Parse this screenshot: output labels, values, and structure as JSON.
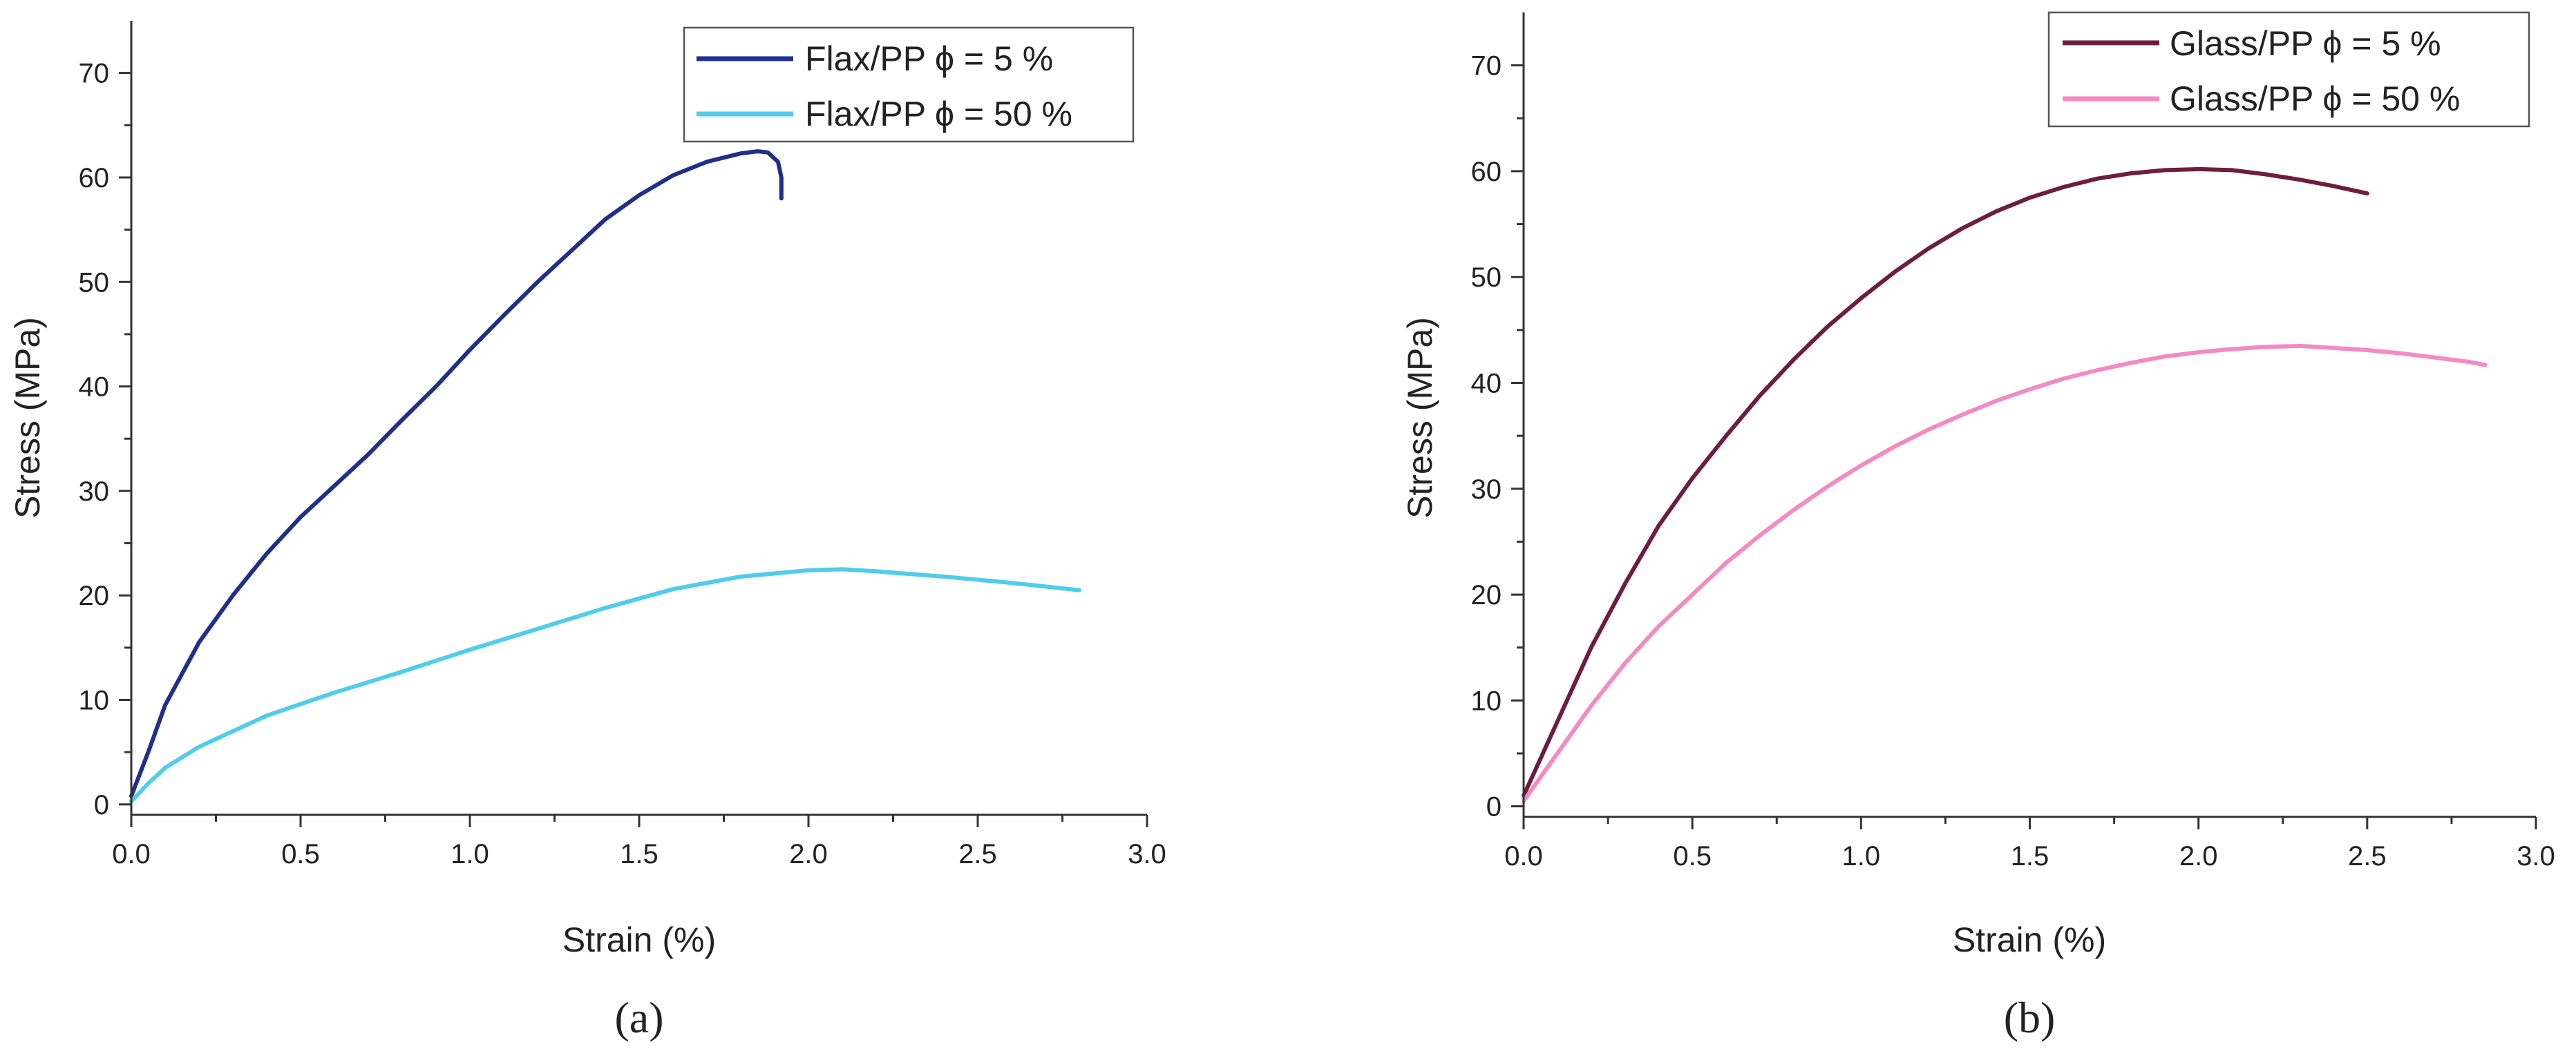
{
  "chart_data": [
    {
      "type": "line",
      "panel_label": "(a)",
      "xlabel": "Strain (%)",
      "ylabel": "Stress (MPa)",
      "xlim": [
        0,
        3
      ],
      "ylim": [
        -1,
        75
      ],
      "x_ticks": [
        "0.0",
        "0.5",
        "1.0",
        "1.5",
        "2.0",
        "2.5",
        "3.0"
      ],
      "y_ticks": [
        "0",
        "10",
        "20",
        "30",
        "40",
        "50",
        "60",
        "70"
      ],
      "grid": false,
      "legend_position": "top-right",
      "series": [
        {
          "name": "Flax/PP ϕ = 5 %",
          "color": "#1f2f8a",
          "points": [
            [
              0,
              0.8
            ],
            [
              0.05,
              5
            ],
            [
              0.1,
              9.5
            ],
            [
              0.2,
              15.5
            ],
            [
              0.3,
              20
            ],
            [
              0.4,
              24
            ],
            [
              0.5,
              27.5
            ],
            [
              0.6,
              30.5
            ],
            [
              0.7,
              33.5
            ],
            [
              0.8,
              36.8
            ],
            [
              0.9,
              40
            ],
            [
              1.0,
              43.5
            ],
            [
              1.1,
              46.8
            ],
            [
              1.2,
              50
            ],
            [
              1.3,
              53
            ],
            [
              1.4,
              56
            ],
            [
              1.5,
              58.3
            ],
            [
              1.6,
              60.2
            ],
            [
              1.7,
              61.5
            ],
            [
              1.8,
              62.3
            ],
            [
              1.85,
              62.5
            ],
            [
              1.88,
              62.4
            ],
            [
              1.91,
              61.5
            ],
            [
              1.92,
              60
            ],
            [
              1.92,
              58
            ]
          ]
        },
        {
          "name": "Flax/PP ϕ = 50 %",
          "color": "#4fcdea",
          "points": [
            [
              0,
              0.3
            ],
            [
              0.05,
              2
            ],
            [
              0.1,
              3.5
            ],
            [
              0.2,
              5.5
            ],
            [
              0.3,
              7
            ],
            [
              0.4,
              8.5
            ],
            [
              0.5,
              9.6
            ],
            [
              0.6,
              10.7
            ],
            [
              0.8,
              12.7
            ],
            [
              1.0,
              14.8
            ],
            [
              1.2,
              16.8
            ],
            [
              1.4,
              18.8
            ],
            [
              1.6,
              20.6
            ],
            [
              1.8,
              21.8
            ],
            [
              2.0,
              22.4
            ],
            [
              2.1,
              22.5
            ],
            [
              2.2,
              22.3
            ],
            [
              2.4,
              21.8
            ],
            [
              2.6,
              21.2
            ],
            [
              2.8,
              20.5
            ]
          ]
        }
      ]
    },
    {
      "type": "line",
      "panel_label": "(b)",
      "xlabel": "Strain (%)",
      "ylabel": "Stress (MPa)",
      "xlim": [
        0,
        3
      ],
      "ylim": [
        -1,
        75
      ],
      "x_ticks": [
        "0.0",
        "0.5",
        "1.0",
        "1.5",
        "2.0",
        "2.5",
        "3.0"
      ],
      "y_ticks": [
        "0",
        "10",
        "20",
        "30",
        "40",
        "50",
        "60",
        "70"
      ],
      "grid": false,
      "legend_position": "top-right",
      "series": [
        {
          "name": "Glass/PP ϕ = 5 %",
          "color": "#6e1d3f",
          "points": [
            [
              0,
              1
            ],
            [
              0.1,
              8
            ],
            [
              0.2,
              15
            ],
            [
              0.3,
              21
            ],
            [
              0.4,
              26.5
            ],
            [
              0.5,
              31
            ],
            [
              0.6,
              35
            ],
            [
              0.7,
              38.8
            ],
            [
              0.8,
              42.2
            ],
            [
              0.9,
              45.3
            ],
            [
              1.0,
              48
            ],
            [
              1.1,
              50.5
            ],
            [
              1.2,
              52.7
            ],
            [
              1.3,
              54.6
            ],
            [
              1.4,
              56.2
            ],
            [
              1.5,
              57.5
            ],
            [
              1.6,
              58.5
            ],
            [
              1.7,
              59.3
            ],
            [
              1.8,
              59.8
            ],
            [
              1.9,
              60.1
            ],
            [
              2.0,
              60.2
            ],
            [
              2.1,
              60.1
            ],
            [
              2.2,
              59.7
            ],
            [
              2.3,
              59.2
            ],
            [
              2.4,
              58.6
            ],
            [
              2.5,
              57.9
            ]
          ]
        },
        {
          "name": "Glass/PP ϕ = 50 %",
          "color": "#f589c4",
          "points": [
            [
              0,
              0.5
            ],
            [
              0.1,
              5
            ],
            [
              0.2,
              9.5
            ],
            [
              0.3,
              13.5
            ],
            [
              0.4,
              17
            ],
            [
              0.5,
              20
            ],
            [
              0.6,
              23
            ],
            [
              0.7,
              25.6
            ],
            [
              0.8,
              28
            ],
            [
              0.9,
              30.2
            ],
            [
              1.0,
              32.2
            ],
            [
              1.1,
              34
            ],
            [
              1.2,
              35.6
            ],
            [
              1.3,
              37
            ],
            [
              1.4,
              38.3
            ],
            [
              1.5,
              39.4
            ],
            [
              1.6,
              40.4
            ],
            [
              1.7,
              41.2
            ],
            [
              1.8,
              41.9
            ],
            [
              1.9,
              42.5
            ],
            [
              2.0,
              42.9
            ],
            [
              2.1,
              43.2
            ],
            [
              2.2,
              43.4
            ],
            [
              2.3,
              43.5
            ],
            [
              2.4,
              43.3
            ],
            [
              2.5,
              43.1
            ],
            [
              2.6,
              42.8
            ],
            [
              2.7,
              42.4
            ],
            [
              2.8,
              42
            ],
            [
              2.85,
              41.7
            ]
          ]
        }
      ]
    }
  ]
}
